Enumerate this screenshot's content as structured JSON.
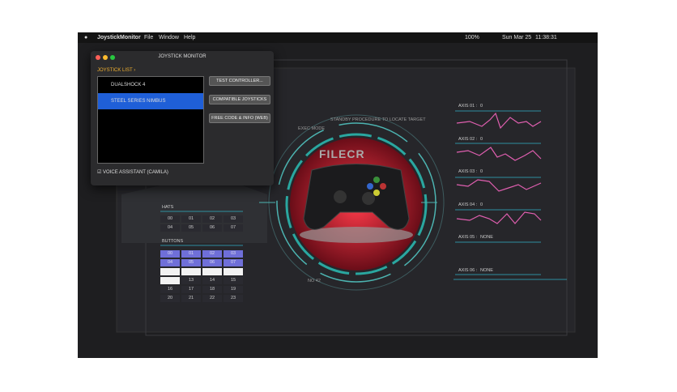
{
  "menu_bar": {
    "app": "JoystickMonitor",
    "items": [
      "File",
      "Window",
      "Help"
    ],
    "battery": "100%",
    "date": "Sun Mar 25",
    "time": "11:38:31"
  },
  "window": {
    "title": "JOYSTICK MONITOR",
    "list_label": "JOYSTICK LIST ›",
    "joysticks": [
      "DUALSHOCK 4",
      "STEEL SERIES NIMBUS"
    ],
    "selected": 1,
    "buttons": [
      "TEST CONTROLLER...",
      "COMPATIBLE JOYSTICKS",
      "FREE CODE & INFO (WEB)"
    ],
    "voice_assistant": "VOICE ASSISTANT (CAMILA)"
  },
  "hats": {
    "label": "HATS",
    "cells": [
      "00",
      "01",
      "02",
      "03",
      "04",
      "05",
      "06",
      "07"
    ]
  },
  "buttons": {
    "label": "BUTTONS",
    "cells": [
      "00",
      "01",
      "02",
      "03",
      "04",
      "05",
      "06",
      "07",
      null,
      null,
      null,
      null,
      null,
      "13",
      "14",
      "15",
      "16",
      "17",
      "18",
      "19",
      "20",
      "21",
      "22",
      "23"
    ]
  },
  "axes": [
    {
      "label": "AXIS 01 :",
      "value": "0"
    },
    {
      "label": "AXIS 02 :",
      "value": "0"
    },
    {
      "label": "AXIS 03 :",
      "value": "0"
    },
    {
      "label": "AXIS 04 :",
      "value": "0"
    },
    {
      "label": "AXIS 05 :",
      "value": "NONE"
    },
    {
      "label": "AXIS 06 :",
      "value": "NONE"
    }
  ],
  "ring_texts": [
    "STANDBY PROCEDURE TO LOCATE TARGET",
    "EXEC MODE",
    "NO 42"
  ],
  "watermark": "FILECR"
}
